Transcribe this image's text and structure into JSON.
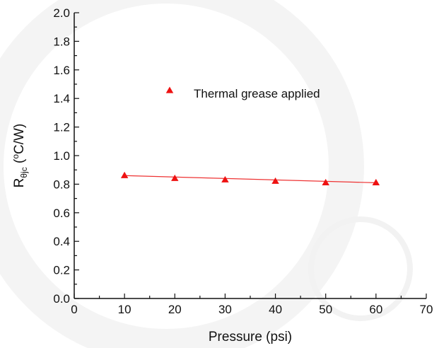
{
  "chart_data": {
    "type": "scatter",
    "title": "",
    "xlabel": "Pressure (psi)",
    "ylabel": {
      "main": "R",
      "subscript": "θjc",
      "open": " (",
      "superscript": "o",
      "unit": "C/W)"
    },
    "xlim": [
      0,
      70
    ],
    "ylim": [
      0.0,
      2.0
    ],
    "xticks": [
      "0",
      "10",
      "20",
      "30",
      "40",
      "50",
      "60",
      "70"
    ],
    "yticks": [
      "0.0",
      "0.2",
      "0.4",
      "0.6",
      "0.8",
      "1.0",
      "1.2",
      "1.4",
      "1.6",
      "1.8",
      "2.0"
    ],
    "grid": false,
    "legend_position": "upper-left-inside",
    "series": [
      {
        "name": "Thermal grease applied",
        "marker": "triangle",
        "color": "#ee1111",
        "x": [
          10,
          20,
          30,
          40,
          50,
          60
        ],
        "y": [
          0.86,
          0.84,
          0.83,
          0.82,
          0.81,
          0.81
        ]
      }
    ],
    "trendline": {
      "color": "#ee3333",
      "start": [
        10,
        0.86
      ],
      "end": [
        60,
        0.81
      ]
    }
  }
}
